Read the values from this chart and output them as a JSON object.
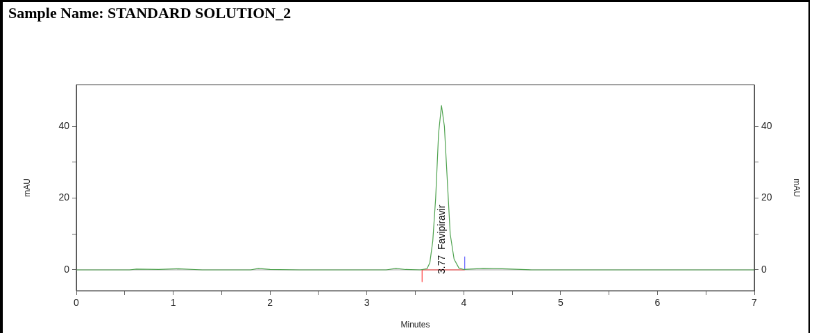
{
  "chart_data": {
    "type": "line",
    "title": "Sample Name: STANDARD SOLUTION_2",
    "xlabel": "Minutes",
    "ylabel": "mAU",
    "y2label": "mAU",
    "xlim": [
      0,
      7
    ],
    "xticks": [
      0,
      {
        "value": 0.5,
        "label": null
      },
      1,
      {
        "value": 1.5,
        "label": null
      },
      2,
      {
        "value": 2.5,
        "label": null
      },
      3,
      {
        "value": 3.5,
        "label": null
      },
      4,
      {
        "value": 4.5,
        "label": null
      },
      5,
      {
        "value": 5.5,
        "label": null
      },
      6,
      {
        "value": 6.5,
        "label": null
      },
      7
    ],
    "ylim": [
      -5.8,
      51.6
    ],
    "yticks": [
      0,
      {
        "value": 10,
        "label": null
      },
      20,
      {
        "value": 30,
        "label": null
      },
      40
    ],
    "y2lim": [
      -5.8,
      51.6
    ],
    "y2ticks": [
      0,
      {
        "value": 10,
        "label": null
      },
      20,
      {
        "value": 30,
        "label": null
      },
      40
    ],
    "grid": false,
    "legend": false,
    "marker": "none",
    "line_style": "solid",
    "ref_lines": [
      {
        "axis": "y",
        "value": 0,
        "color": "#a0a0a0"
      }
    ],
    "annotations": [
      {
        "text": "3.77  Favipiravir",
        "x": 3.77,
        "y": 0
      }
    ],
    "series": [
      {
        "color": "#4ea24e",
        "x": [
          0,
          0.55,
          0.62,
          0.85,
          1.05,
          1.3,
          1.8,
          1.88,
          2.0,
          2.3,
          3.2,
          3.3,
          3.4,
          3.55,
          3.62,
          3.65,
          3.68,
          3.71,
          3.74,
          3.77,
          3.8,
          3.83,
          3.86,
          3.9,
          3.95,
          4.0,
          4.2,
          4.4,
          4.7,
          7
        ],
        "values": [
          0,
          0,
          0.2,
          0.1,
          0.3,
          0,
          0,
          0.4,
          0.1,
          0,
          0,
          0.4,
          0.1,
          0,
          0.3,
          2,
          8,
          20,
          38,
          45.8,
          40,
          25,
          10,
          3,
          0.5,
          0.1,
          0.4,
          0.3,
          0,
          0
        ]
      },
      {
        "color": "#ff4040",
        "x": [
          3.57,
          4.01
        ],
        "values": [
          0,
          0
        ]
      },
      {
        "color": "#ff4040",
        "x": [
          3.57,
          3.57
        ],
        "values": [
          0,
          -3.3
        ]
      },
      {
        "color": "#6060ff",
        "x": [
          4.01,
          4.01
        ],
        "values": [
          0,
          3.7
        ]
      }
    ]
  }
}
